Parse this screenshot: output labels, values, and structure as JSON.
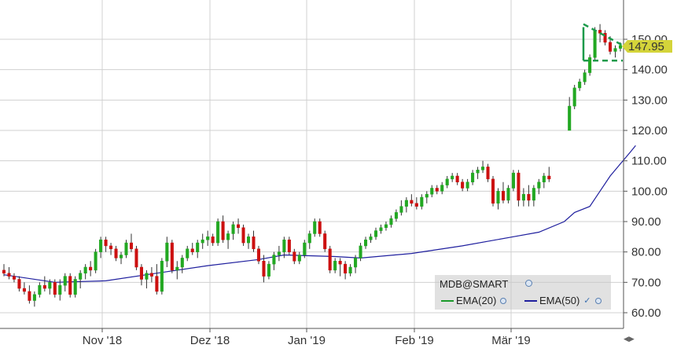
{
  "chart_data": {
    "type": "candlestick",
    "title": "",
    "symbol_label": "MDB@SMART",
    "last_price_label": "147.95",
    "y_ticks": [
      "60.00",
      "70.00",
      "80.00",
      "90.00",
      "100.00",
      "110.00",
      "120.00",
      "130.00",
      "140.00",
      "150.00"
    ],
    "x_ticks": [
      "Nov '18",
      "Dez '18",
      "Jan '19",
      "Feb '19",
      "Mär '19"
    ],
    "ylim": [
      55,
      157
    ],
    "grid": true,
    "legend": [
      {
        "name": "EMA(20)",
        "color": "#1a9a2a"
      },
      {
        "name": "EMA(50)",
        "color": "#1f1f9e"
      }
    ],
    "colors": {
      "up": "#22a822",
      "down": "#cc1010",
      "ema50": "#1f1f9e",
      "pattern": "#1a9a4a",
      "price_tag": "#d4d43a"
    },
    "candles": [
      [
        74,
        76,
        72,
        73
      ],
      [
        73,
        75,
        71,
        72
      ],
      [
        72,
        73,
        70,
        71
      ],
      [
        71,
        72,
        67,
        68
      ],
      [
        68,
        70,
        66,
        67
      ],
      [
        67,
        69,
        63,
        64
      ],
      [
        64,
        67,
        62,
        66
      ],
      [
        66,
        70,
        65,
        69
      ],
      [
        69,
        72,
        67,
        68
      ],
      [
        68,
        71,
        66,
        70
      ],
      [
        70,
        71,
        65,
        66
      ],
      [
        66,
        71,
        64,
        69
      ],
      [
        69,
        73,
        67,
        72
      ],
      [
        72,
        73,
        65,
        66
      ],
      [
        66,
        72,
        65,
        71
      ],
      [
        71,
        74,
        68,
        73
      ],
      [
        73,
        76,
        71,
        75
      ],
      [
        75,
        77,
        72,
        74
      ],
      [
        74,
        81,
        73,
        80
      ],
      [
        80,
        85,
        78,
        84
      ],
      [
        84,
        85,
        80,
        82
      ],
      [
        82,
        83,
        79,
        81
      ],
      [
        81,
        82,
        77,
        78
      ],
      [
        78,
        80,
        76,
        79
      ],
      [
        79,
        84,
        78,
        83
      ],
      [
        83,
        86,
        80,
        81
      ],
      [
        81,
        82,
        74,
        75
      ],
      [
        75,
        76,
        69,
        71
      ],
      [
        71,
        74,
        68,
        73
      ],
      [
        73,
        75,
        70,
        72
      ],
      [
        72,
        76,
        66,
        67
      ],
      [
        67,
        78,
        66,
        77
      ],
      [
        77,
        85,
        75,
        83
      ],
      [
        83,
        84,
        73,
        74
      ],
      [
        74,
        77,
        71,
        75
      ],
      [
        75,
        79,
        73,
        78
      ],
      [
        78,
        82,
        77,
        81
      ],
      [
        81,
        83,
        79,
        80
      ],
      [
        80,
        84,
        78,
        83
      ],
      [
        83,
        86,
        81,
        84
      ],
      [
        84,
        87,
        82,
        85
      ],
      [
        85,
        86,
        82,
        83
      ],
      [
        83,
        91,
        82,
        90
      ],
      [
        90,
        92,
        83,
        84
      ],
      [
        84,
        87,
        81,
        86
      ],
      [
        86,
        90,
        84,
        89
      ],
      [
        89,
        91,
        86,
        88
      ],
      [
        88,
        89,
        82,
        83
      ],
      [
        83,
        86,
        81,
        85
      ],
      [
        85,
        87,
        80,
        81
      ],
      [
        81,
        82,
        76,
        77
      ],
      [
        77,
        79,
        70,
        72
      ],
      [
        72,
        77,
        71,
        76
      ],
      [
        76,
        80,
        74,
        79
      ],
      [
        79,
        82,
        77,
        80
      ],
      [
        80,
        85,
        78,
        84
      ],
      [
        84,
        85,
        79,
        80
      ],
      [
        80,
        81,
        76,
        77
      ],
      [
        77,
        80,
        76,
        79
      ],
      [
        79,
        84,
        78,
        83
      ],
      [
        83,
        87,
        81,
        86
      ],
      [
        86,
        91,
        85,
        90
      ],
      [
        90,
        91,
        85,
        86
      ],
      [
        86,
        87,
        80,
        81
      ],
      [
        81,
        82,
        73,
        74
      ],
      [
        74,
        78,
        73,
        77
      ],
      [
        77,
        78,
        72,
        76
      ],
      [
        76,
        77,
        71,
        73
      ],
      [
        73,
        76,
        72,
        75
      ],
      [
        75,
        79,
        73,
        78
      ],
      [
        78,
        83,
        77,
        82
      ],
      [
        82,
        85,
        81,
        84
      ],
      [
        84,
        86,
        83,
        85
      ],
      [
        85,
        88,
        84,
        87
      ],
      [
        87,
        89,
        86,
        88
      ],
      [
        88,
        90,
        87,
        89
      ],
      [
        89,
        92,
        88,
        91
      ],
      [
        91,
        94,
        90,
        93
      ],
      [
        93,
        97,
        92,
        95
      ],
      [
        95,
        98,
        93,
        97
      ],
      [
        97,
        99,
        95,
        96
      ],
      [
        96,
        98,
        94,
        95
      ],
      [
        95,
        99,
        94,
        98
      ],
      [
        98,
        100,
        96,
        99
      ],
      [
        99,
        102,
        98,
        101
      ],
      [
        101,
        102,
        99,
        100
      ],
      [
        100,
        103,
        99,
        102
      ],
      [
        102,
        105,
        101,
        104
      ],
      [
        104,
        106,
        103,
        105
      ],
      [
        105,
        106,
        102,
        103
      ],
      [
        103,
        104,
        100,
        101
      ],
      [
        101,
        104,
        100,
        103
      ],
      [
        103,
        107,
        102,
        106
      ],
      [
        106,
        108,
        104,
        107
      ],
      [
        107,
        110,
        106,
        108
      ],
      [
        108,
        109,
        103,
        104
      ],
      [
        104,
        105,
        95,
        96
      ],
      [
        96,
        101,
        94,
        100
      ],
      [
        100,
        103,
        96,
        97
      ],
      [
        97,
        102,
        96,
        101
      ],
      [
        101,
        107,
        100,
        106
      ],
      [
        106,
        107,
        95,
        97
      ],
      [
        97,
        101,
        95,
        99
      ],
      [
        99,
        102,
        95,
        97
      ],
      [
        97,
        102,
        95,
        101
      ],
      [
        101,
        104,
        99,
        103
      ],
      [
        103,
        106,
        101,
        105
      ],
      [
        105,
        108,
        103,
        104
      ],
      [
        null,
        null,
        null,
        null
      ],
      [
        null,
        null,
        null,
        null
      ],
      [
        null,
        null,
        null,
        null
      ],
      [
        120,
        131,
        120,
        128
      ],
      [
        128,
        135,
        127,
        134
      ],
      [
        134,
        137,
        133,
        136
      ],
      [
        136,
        140,
        135,
        139
      ],
      [
        139,
        145,
        138,
        144
      ],
      [
        144,
        154,
        143,
        153
      ],
      [
        153,
        155,
        149,
        152
      ],
      [
        152,
        153,
        148,
        149
      ],
      [
        149,
        151,
        145,
        146
      ],
      [
        146,
        148,
        144,
        147
      ],
      [
        147,
        149,
        146,
        148
      ]
    ],
    "ema50": [
      [
        0,
        72.5
      ],
      [
        10,
        70
      ],
      [
        20,
        70.5
      ],
      [
        30,
        73
      ],
      [
        40,
        75.5
      ],
      [
        50,
        77.5
      ],
      [
        55,
        79
      ],
      [
        65,
        78.5
      ],
      [
        70,
        78
      ],
      [
        80,
        79.5
      ],
      [
        90,
        82
      ],
      [
        100,
        85
      ],
      [
        105,
        86.5
      ],
      [
        110,
        90
      ],
      [
        112,
        93
      ],
      [
        115,
        95
      ],
      [
        117,
        100
      ],
      [
        119,
        105
      ],
      [
        121,
        109
      ],
      [
        123,
        113
      ],
      [
        124,
        115
      ]
    ]
  }
}
